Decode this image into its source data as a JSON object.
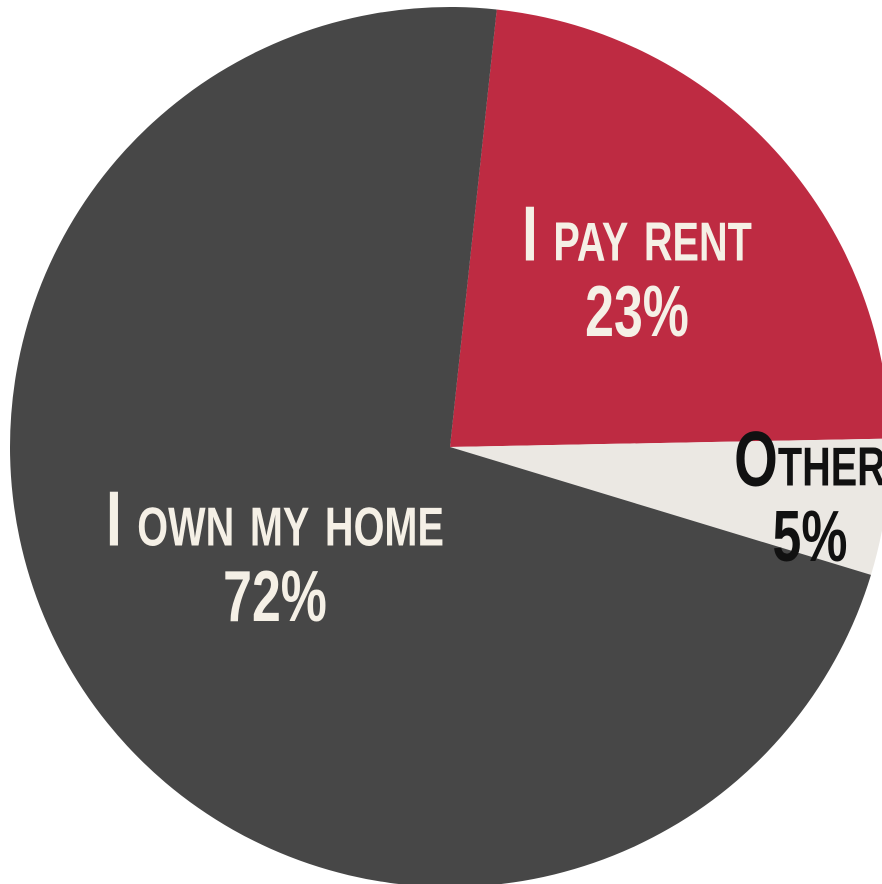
{
  "chart_data": {
    "type": "pie",
    "categories": [
      "I pay rent",
      "Other",
      "I own my home"
    ],
    "values": [
      23,
      5,
      72
    ],
    "value_labels": [
      "23%",
      "5%",
      "72%"
    ],
    "colors": [
      "#be2b42",
      "#ebe8e3",
      "#474747"
    ],
    "label_colors": [
      "#f5f0e6",
      "#111111",
      "#f5f0e6"
    ]
  }
}
